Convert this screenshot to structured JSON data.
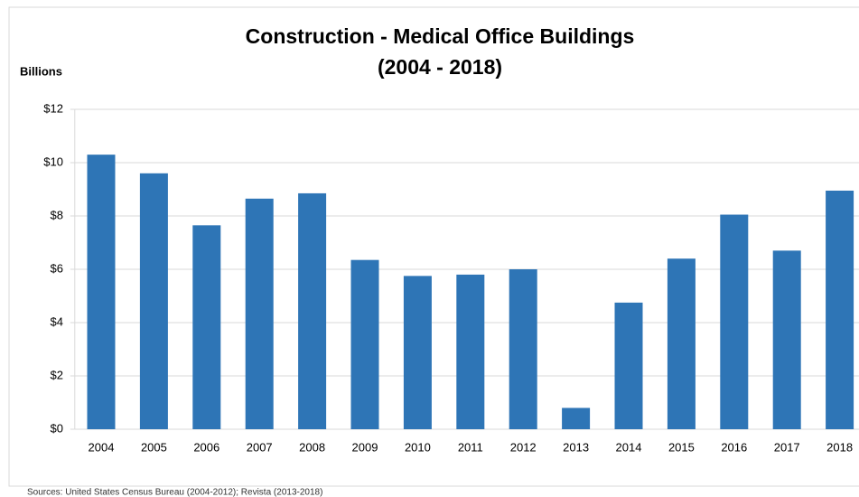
{
  "chart_data": {
    "type": "bar",
    "title": "Construction - Medical Office Buildings",
    "subtitle": "(2004 - 2018)",
    "y_label": "Billions",
    "source": "Sources:  United States Census Bureau (2004-2012); Revista (2013-2018)",
    "categories": [
      "2004",
      "2005",
      "2006",
      "2007",
      "2008",
      "2009",
      "2010",
      "2011",
      "2012",
      "2013",
      "2014",
      "2015",
      "2016",
      "2017",
      "2018"
    ],
    "values": [
      10.3,
      9.6,
      7.65,
      8.65,
      8.85,
      6.35,
      5.75,
      5.8,
      6.0,
      0.8,
      4.75,
      6.4,
      8.05,
      6.7,
      8.95
    ],
    "color": "#2e75b6",
    "ylim": [
      0,
      12
    ],
    "yticks": [
      {
        "value": 0,
        "label": "$0"
      },
      {
        "value": 2,
        "label": "$2"
      },
      {
        "value": 4,
        "label": "$4"
      },
      {
        "value": 6,
        "label": "$6"
      },
      {
        "value": 8,
        "label": "$8"
      },
      {
        "value": 10,
        "label": "$10"
      },
      {
        "value": 12,
        "label": "$12"
      }
    ],
    "grid": true
  }
}
